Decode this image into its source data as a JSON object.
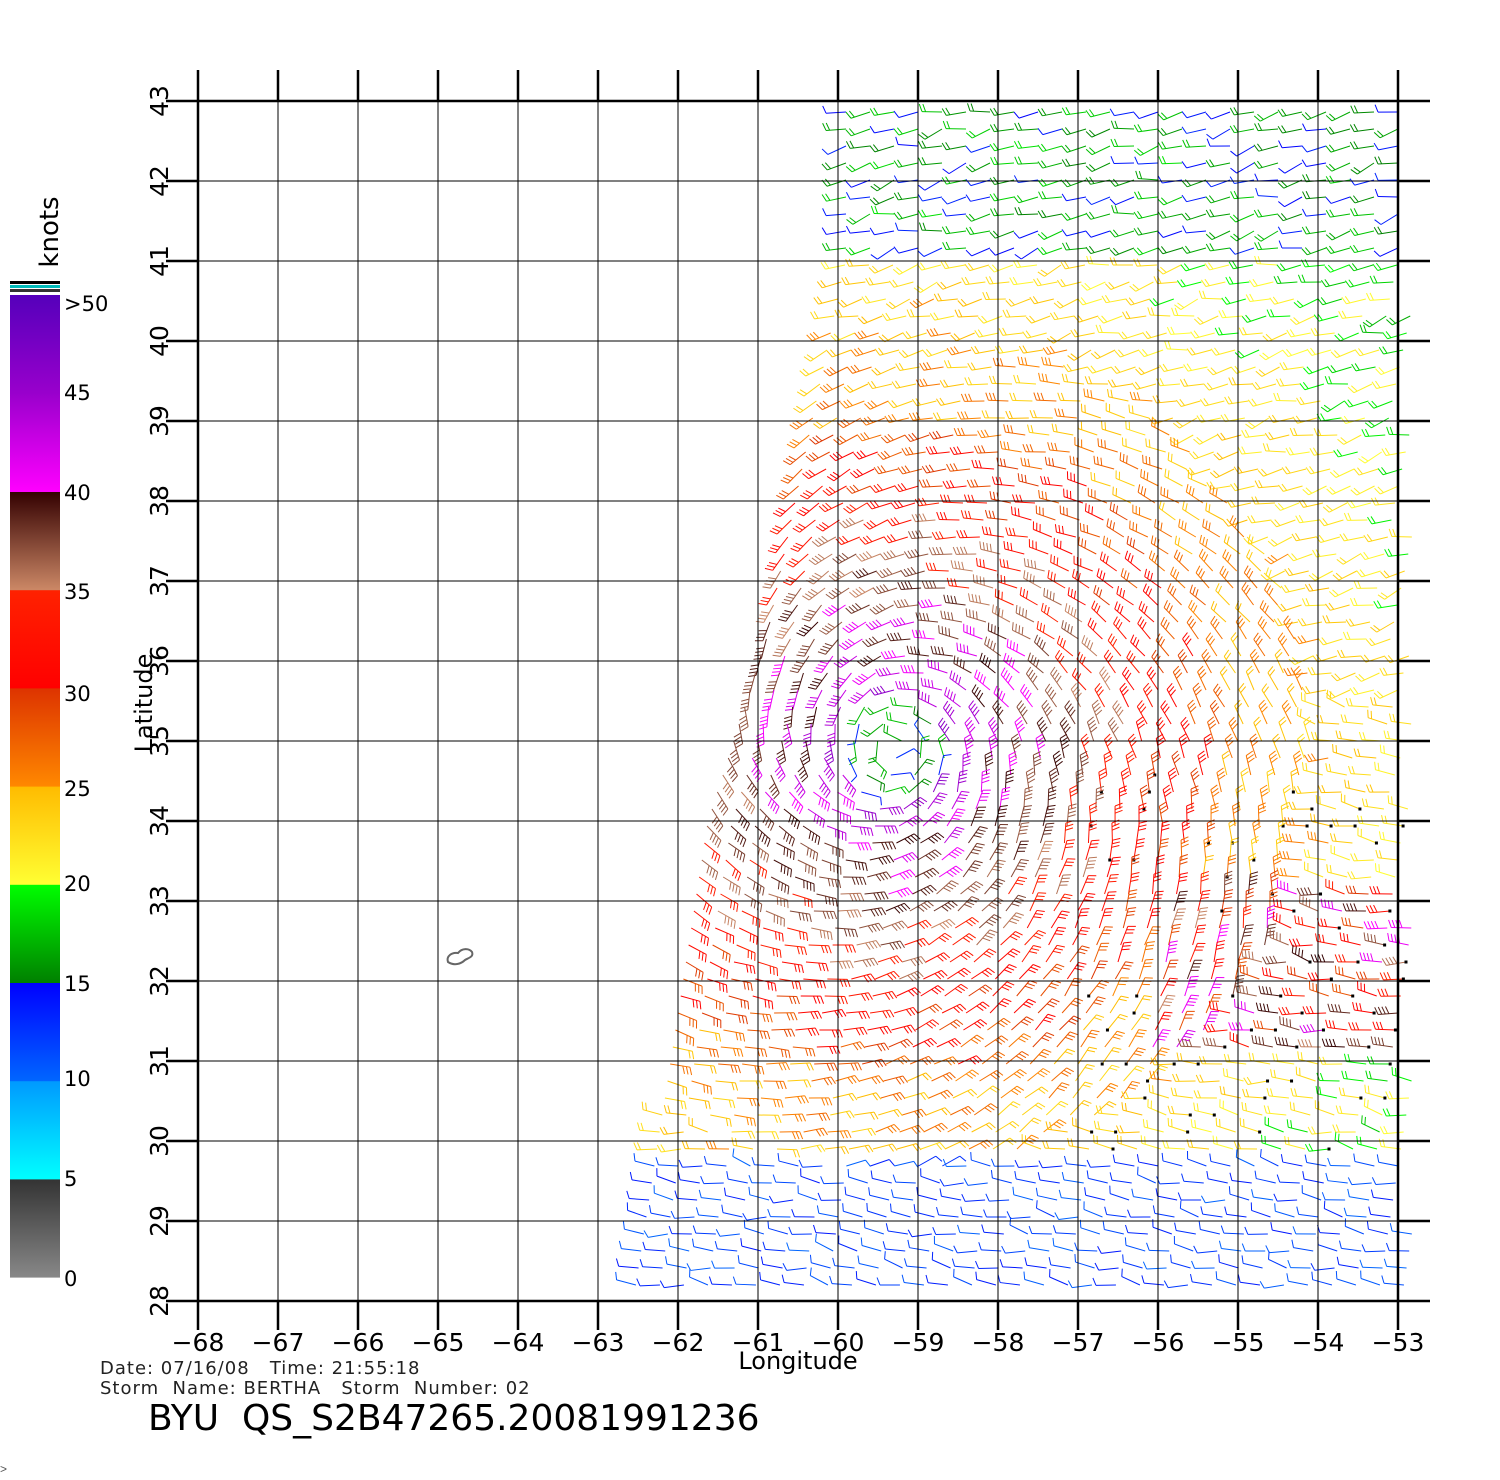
{
  "map": {
    "x_axis_label": "Longitude",
    "y_axis_label": "Latitude",
    "lon_range": [
      -68,
      -53
    ],
    "lat_range": [
      28,
      43
    ],
    "lon_ticks": [
      "−68",
      "−67",
      "−66",
      "−65",
      "−64",
      "−63",
      "−62",
      "−61",
      "−60",
      "−59",
      "−58",
      "−57",
      "−56",
      "−55",
      "−54",
      "−53"
    ],
    "lat_ticks": [
      "28",
      "29",
      "30",
      "31",
      "32",
      "33",
      "34",
      "35",
      "36",
      "37",
      "38",
      "39",
      "40",
      "41",
      "42",
      "43"
    ],
    "grid": true,
    "storm_center": {
      "lon": -59.3,
      "lat": 34.9
    },
    "island_outline_location": {
      "lon": -64.7,
      "lat": 32.3
    }
  },
  "legend": {
    "title": "knots",
    "labels": [
      ">50",
      "45",
      "40",
      "35",
      "30",
      "25",
      "20",
      "15",
      "10",
      "5",
      "0"
    ],
    "bins": [
      {
        "label": "0",
        "from": "#888888",
        "to": "#333333"
      },
      {
        "label": "5",
        "from": "#00ffff",
        "to": "#0099ff"
      },
      {
        "label": "10",
        "from": "#0066ff",
        "to": "#0000ff"
      },
      {
        "label": "15",
        "from": "#008000",
        "to": "#00ff00"
      },
      {
        "label": "20",
        "from": "#ffff33",
        "to": "#ffbb00"
      },
      {
        "label": "25",
        "from": "#ff8800",
        "to": "#dd3300"
      },
      {
        "label": "30",
        "from": "#ff0000",
        "to": "#ff2200"
      },
      {
        "label": "35",
        "from": "#cc8866",
        "to": "#330000"
      },
      {
        "label": "40",
        "from": "#ff00ff",
        "to": "#9900cc"
      },
      {
        "label": "45",
        "from": "#9900cc",
        "to": "#5500bb"
      }
    ],
    "top_stripes": [
      "#000000",
      "#00bbbb",
      "#333333"
    ]
  },
  "info": {
    "line1": "Date: 07/16/08   Time: 21:55:18",
    "line2": "Storm  Name: BERTHA   Storm  Number: 02",
    "product": "BYU  QS_S2B47265.20081991236"
  },
  "footer": {
    "corner_mark": ">"
  },
  "colors": {
    "grid": "#000000",
    "axis": "#000000",
    "island": "#666666",
    "rain_flag": "#000000"
  }
}
